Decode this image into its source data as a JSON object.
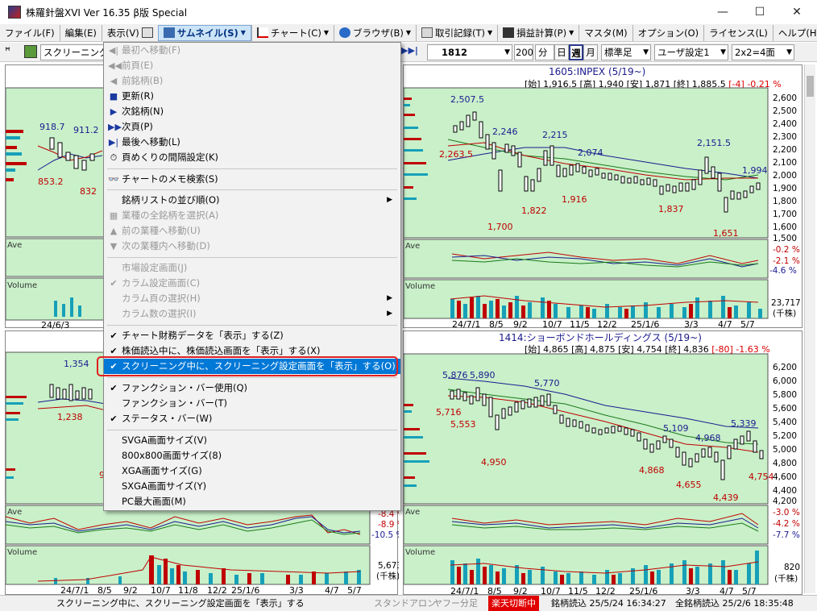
{
  "window": {
    "title": "株羅針盤XVI Ver 16.35 β版  Special",
    "min_glyph": "—",
    "max_glyph": "☐",
    "close_glyph": "✕"
  },
  "menubar": {
    "items": [
      {
        "label": "ファイル(F)"
      },
      {
        "label": "編集(E)"
      },
      {
        "label": "表示(V)"
      },
      {
        "label": "サムネイル(S)"
      },
      {
        "label": "チャート(C)"
      },
      {
        "label": "ブラウザ(B)"
      },
      {
        "label": "取引記録(T)"
      },
      {
        "label": "損益計算(P)"
      },
      {
        "label": "マスタ(M)"
      },
      {
        "label": "オプション(O)"
      },
      {
        "label": "ライセンス(L)"
      },
      {
        "label": "ヘルプ(H)"
      }
    ],
    "help_glyph": "?"
  },
  "toolbar": {
    "pin_glyph": "ꟸ",
    "list_select": "スクリーニング市場",
    "nav_glyph": "▶▶|",
    "code_value": "1812",
    "period_count": "200",
    "unit": "分",
    "btn_day": "日",
    "btn_week": "週",
    "btn_month": "月",
    "chart_style": "標準足",
    "user_setting": "ユーザ設定1",
    "layout": "2x2=4面"
  },
  "dropdown": {
    "items": [
      {
        "icon": "◀|",
        "label": "最初へ移動(F)",
        "disabled": true
      },
      {
        "icon": "◀◀",
        "label": "前頁(E)",
        "disabled": true
      },
      {
        "icon": "◀",
        "label": "前銘柄(B)",
        "disabled": true
      },
      {
        "icon": "■",
        "label": "更新(R)",
        "disabled": false
      },
      {
        "icon": "▶",
        "label": "次銘柄(N)",
        "disabled": false
      },
      {
        "icon": "▶▶",
        "label": "次頁(P)",
        "disabled": false
      },
      {
        "icon": "▶|",
        "label": "最後へ移動(L)",
        "disabled": false
      },
      {
        "icon": "⏱",
        "label": "頁めくりの間隔設定(K)",
        "disabled": false
      },
      {
        "icon": "👓",
        "label": "チャートのメモ検索(S)",
        "disabled": false
      },
      {
        "icon": "",
        "label": "銘柄リストの並び順(O)",
        "disabled": false,
        "submenu": true
      },
      {
        "icon": "▦",
        "label": "業種の全銘柄を選択(A)",
        "disabled": true
      },
      {
        "icon": "▲",
        "label": "前の業種へ移動(U)",
        "disabled": true
      },
      {
        "icon": "▼",
        "label": "次の業種内へ移動(D)",
        "disabled": true
      },
      {
        "icon": "",
        "label": "市場設定画面(J)",
        "disabled": true
      },
      {
        "icon": "✔",
        "label": "カラム設定画面(C)",
        "disabled": true
      },
      {
        "icon": "",
        "label": "カラム頁の選択(H)",
        "disabled": true,
        "submenu": true
      },
      {
        "icon": "",
        "label": "カラム数の選択(I)",
        "disabled": true,
        "submenu": true
      },
      {
        "icon": "✔",
        "label": "チャート財務データを「表示」する(Z)",
        "disabled": false
      },
      {
        "icon": "✔",
        "label": "株価読込中に、株価読込画面を「表示」する(X)",
        "disabled": false
      },
      {
        "icon": "✔",
        "label": "スクリーニング中に、スクリーニング設定画面を「表示」する(O)",
        "disabled": false,
        "highlighted": true
      },
      {
        "icon": "✔",
        "label": "ファンクション・バー使用(Q)",
        "disabled": false
      },
      {
        "icon": "",
        "label": "ファンクション・バー(T)",
        "disabled": false
      },
      {
        "icon": "✔",
        "label": "ステータス・バー(W)",
        "disabled": false
      },
      {
        "icon": "",
        "label": "SVGA画面サイズ(V)",
        "disabled": false
      },
      {
        "icon": "",
        "label": "800x800画面サイズ(8)",
        "disabled": false
      },
      {
        "icon": "",
        "label": "XGA画面サイズ(G)",
        "disabled": false
      },
      {
        "icon": "",
        "label": "SXGA画面サイズ(Y)",
        "disabled": false
      },
      {
        "icon": "",
        "label": "PC最大画面(M)",
        "disabled": false
      }
    ],
    "submenu_glyph": "▶"
  },
  "panes": {
    "tl": {
      "price_labels": [
        "918.7",
        "911.2",
        "853.2",
        "832"
      ],
      "ave_label": "Ave",
      "vol_label": "Volume",
      "date_label": "24/6/3"
    },
    "tr": {
      "title": "1605:INPEX (5/19~)",
      "quote": "[始] 1,916.5 [高] 1,940 [安] 1,871 [終] 1,885.5",
      "change": "[-4] -0.21 %",
      "price_labels": [
        "2,507.5",
        "2,246",
        "2,263.5",
        "2,215",
        "2,074",
        "2,151.5",
        "1,994",
        "1,700",
        "1,822",
        "1,916",
        "1,837",
        "1,651"
      ],
      "yaxis": [
        "2,600",
        "2,500",
        "2,400",
        "2,300",
        "2,200",
        "2,100",
        "2,000",
        "1,900",
        "1,800",
        "1,700",
        "1,600",
        "1,500"
      ],
      "ave_label": "Ave",
      "ave_axis": [
        "-0.2 %",
        "-2.1 %",
        "-4.6 %"
      ],
      "vol_label": "Volume",
      "vol_value": "23,717",
      "vol_unit": "(千株)",
      "dates": [
        "24/7/1",
        "8/5",
        "9/2",
        "10/7",
        "11/5",
        "12/2",
        "25/1/6",
        "3/3",
        "4/7",
        "5/7"
      ]
    },
    "bl": {
      "price_labels": [
        "1,354",
        "1,238",
        "9"
      ],
      "ave_label": "Ave",
      "ave_axis": [
        "-8.4 %",
        "-8.9 %",
        "-10.5 %"
      ],
      "vol_label": "Volume",
      "vol_value": "5,673",
      "vol_unit": "(千株)",
      "dates": [
        "24/7/1",
        "8/5",
        "9/2",
        "10/7",
        "11/8",
        "12/2",
        "25/1/6",
        "3/3",
        "4/7",
        "5/7"
      ]
    },
    "br": {
      "title": "1414:ショーボンドホールディングス (5/19~)",
      "quote": "[始] 4,865 [高] 4,875 [安] 4,754 [終] 4,836",
      "change": "[-80] -1.63 %",
      "price_labels": [
        "5,876",
        "5,890",
        "5,716",
        "5,553",
        "5,770",
        "4,950",
        "5,109",
        "4,968",
        "5,339",
        "4,868",
        "4,655",
        "4,439",
        "4,754"
      ],
      "yaxis": [
        "6,200",
        "6,000",
        "5,800",
        "5,600",
        "5,400",
        "5,200",
        "5,000",
        "4,800",
        "4,600",
        "4,400",
        "4,200"
      ],
      "ave_label": "Ave",
      "ave_axis": [
        "-3.0 %",
        "-4.2 %",
        "-7.7 %"
      ],
      "vol_label": "Volume",
      "vol_value": "820",
      "vol_unit": "(千株)",
      "dates": [
        "24/7/1",
        "8/5",
        "9/2",
        "10/7",
        "11/5",
        "12/2",
        "25/1/6",
        "3/3",
        "4/7",
        "5/7"
      ]
    }
  },
  "statusbar": {
    "message": "スクリーニング中に、スクリーニング設定画面を「表示」する",
    "standalone": "スタンドアロン",
    "yahoo": "ヤフー分足",
    "rakuten": "楽天切断中",
    "stock_read": "銘柄読込 25/5/24 16:34:27",
    "all_read": "全銘柄読込 25/2/6 18:35:48"
  },
  "colors": {
    "chart_bg": "#c9f0c9",
    "highlight": "#0078d7",
    "ring": "#e02020"
  }
}
